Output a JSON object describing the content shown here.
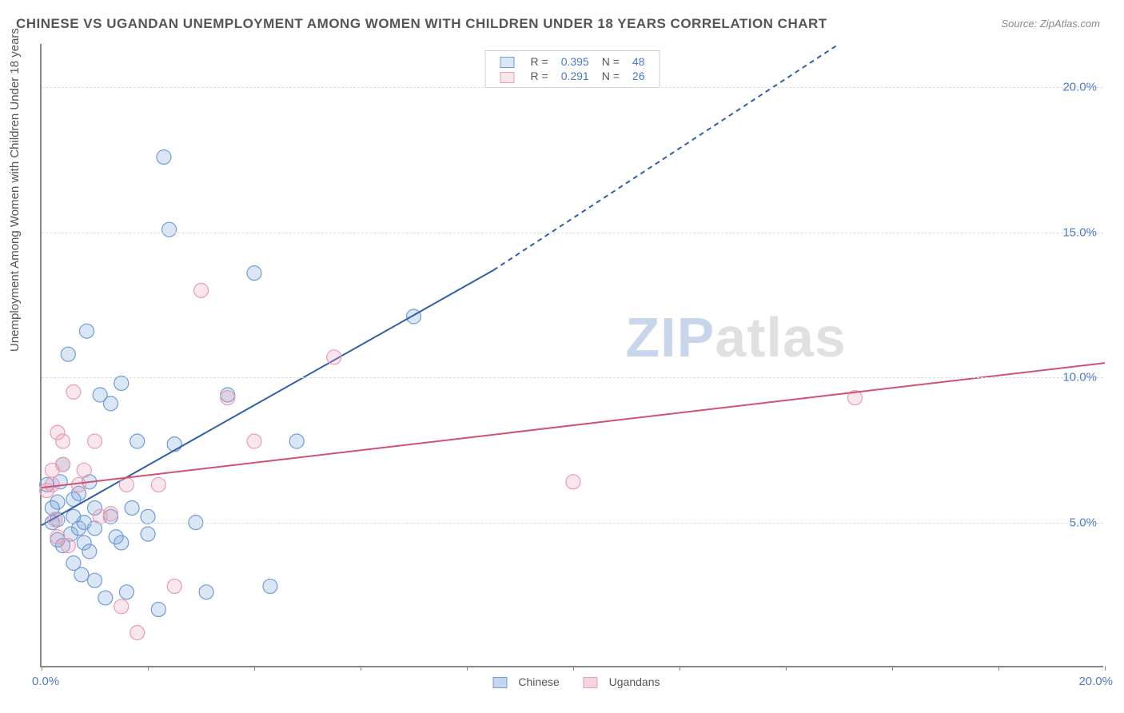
{
  "title": "CHINESE VS UGANDAN UNEMPLOYMENT AMONG WOMEN WITH CHILDREN UNDER 18 YEARS CORRELATION CHART",
  "source": "Source: ZipAtlas.com",
  "ylabel": "Unemployment Among Women with Children Under 18 years",
  "watermark": {
    "part1": "ZIP",
    "part2": "atlas"
  },
  "chart": {
    "type": "scatter",
    "xlim": [
      0,
      20
    ],
    "ylim": [
      0,
      21.5
    ],
    "x_ticks": [
      0,
      2,
      4,
      6,
      8,
      10,
      12,
      14,
      16,
      18,
      20
    ],
    "x_tick_labels_shown": {
      "first": "0.0%",
      "last": "20.0%"
    },
    "y_gridlines": [
      5,
      10,
      15,
      20
    ],
    "y_tick_labels": [
      "5.0%",
      "10.0%",
      "15.0%",
      "20.0%"
    ],
    "grid_color": "#dddddd",
    "axis_color": "#888888",
    "tick_label_color": "#4a7bc8",
    "background_color": "#ffffff",
    "label_fontsize": 15,
    "title_fontsize": 17,
    "marker_radius": 9,
    "marker_fill_opacity": 0.25,
    "marker_stroke_width": 1.2,
    "line_width": 2,
    "series": [
      {
        "name": "Chinese",
        "color": "#6f9cd8",
        "line_color": "#2e5fa8",
        "R": "0.395",
        "N": "48",
        "trend": {
          "x1": 0,
          "y1": 4.9,
          "x2_solid": 8.5,
          "y2_solid": 13.7,
          "x2_dash": 15.0,
          "y2_dash": 21.5
        },
        "points": [
          [
            0.1,
            6.3
          ],
          [
            0.2,
            5.0
          ],
          [
            0.2,
            5.5
          ],
          [
            0.3,
            4.4
          ],
          [
            0.3,
            5.7
          ],
          [
            0.35,
            6.4
          ],
          [
            0.4,
            4.2
          ],
          [
            0.4,
            7.0
          ],
          [
            0.5,
            10.8
          ],
          [
            0.55,
            4.6
          ],
          [
            0.6,
            3.6
          ],
          [
            0.6,
            5.2
          ],
          [
            0.6,
            5.8
          ],
          [
            0.7,
            6.0
          ],
          [
            0.7,
            4.8
          ],
          [
            0.75,
            3.2
          ],
          [
            0.8,
            4.3
          ],
          [
            0.8,
            5.0
          ],
          [
            0.85,
            11.6
          ],
          [
            0.9,
            6.4
          ],
          [
            1.0,
            4.8
          ],
          [
            1.0,
            5.5
          ],
          [
            1.0,
            3.0
          ],
          [
            1.1,
            9.4
          ],
          [
            1.2,
            2.4
          ],
          [
            1.3,
            5.2
          ],
          [
            1.3,
            9.1
          ],
          [
            1.4,
            4.5
          ],
          [
            1.5,
            4.3
          ],
          [
            1.5,
            9.8
          ],
          [
            1.6,
            2.6
          ],
          [
            1.7,
            5.5
          ],
          [
            1.8,
            7.8
          ],
          [
            2.0,
            5.2
          ],
          [
            2.0,
            4.6
          ],
          [
            2.2,
            2.0
          ],
          [
            2.3,
            17.6
          ],
          [
            2.4,
            15.1
          ],
          [
            2.5,
            7.7
          ],
          [
            2.9,
            5.0
          ],
          [
            3.1,
            2.6
          ],
          [
            3.5,
            9.4
          ],
          [
            4.0,
            13.6
          ],
          [
            4.3,
            2.8
          ],
          [
            4.8,
            7.8
          ],
          [
            7.0,
            12.1
          ],
          [
            0.3,
            5.1
          ],
          [
            0.9,
            4.0
          ]
        ]
      },
      {
        "name": "Ugandans",
        "color": "#e89db2",
        "line_color": "#d1516f",
        "R": "0.291",
        "N": "26",
        "trend": {
          "x1": 0,
          "y1": 6.2,
          "x2_solid": 20,
          "y2_solid": 10.5,
          "x2_dash": 20,
          "y2_dash": 10.5
        },
        "points": [
          [
            0.1,
            6.1
          ],
          [
            0.2,
            6.3
          ],
          [
            0.2,
            6.8
          ],
          [
            0.25,
            5.1
          ],
          [
            0.3,
            8.1
          ],
          [
            0.3,
            4.5
          ],
          [
            0.4,
            7.0
          ],
          [
            0.4,
            7.8
          ],
          [
            0.5,
            4.2
          ],
          [
            0.6,
            9.5
          ],
          [
            0.7,
            6.3
          ],
          [
            0.8,
            6.8
          ],
          [
            1.0,
            7.8
          ],
          [
            1.1,
            5.2
          ],
          [
            1.3,
            5.3
          ],
          [
            1.5,
            2.1
          ],
          [
            1.6,
            6.3
          ],
          [
            1.8,
            1.2
          ],
          [
            2.2,
            6.3
          ],
          [
            2.5,
            2.8
          ],
          [
            3.0,
            13.0
          ],
          [
            3.5,
            9.3
          ],
          [
            4.0,
            7.8
          ],
          [
            5.5,
            10.7
          ],
          [
            10.0,
            6.4
          ],
          [
            15.3,
            9.3
          ]
        ]
      }
    ]
  },
  "legend_bottom": {
    "items": [
      {
        "label": "Chinese",
        "fill": "#c3d6f0",
        "border": "#6f9cd8"
      },
      {
        "label": "Ugandans",
        "fill": "#f6d3dd",
        "border": "#e89db2"
      }
    ]
  }
}
